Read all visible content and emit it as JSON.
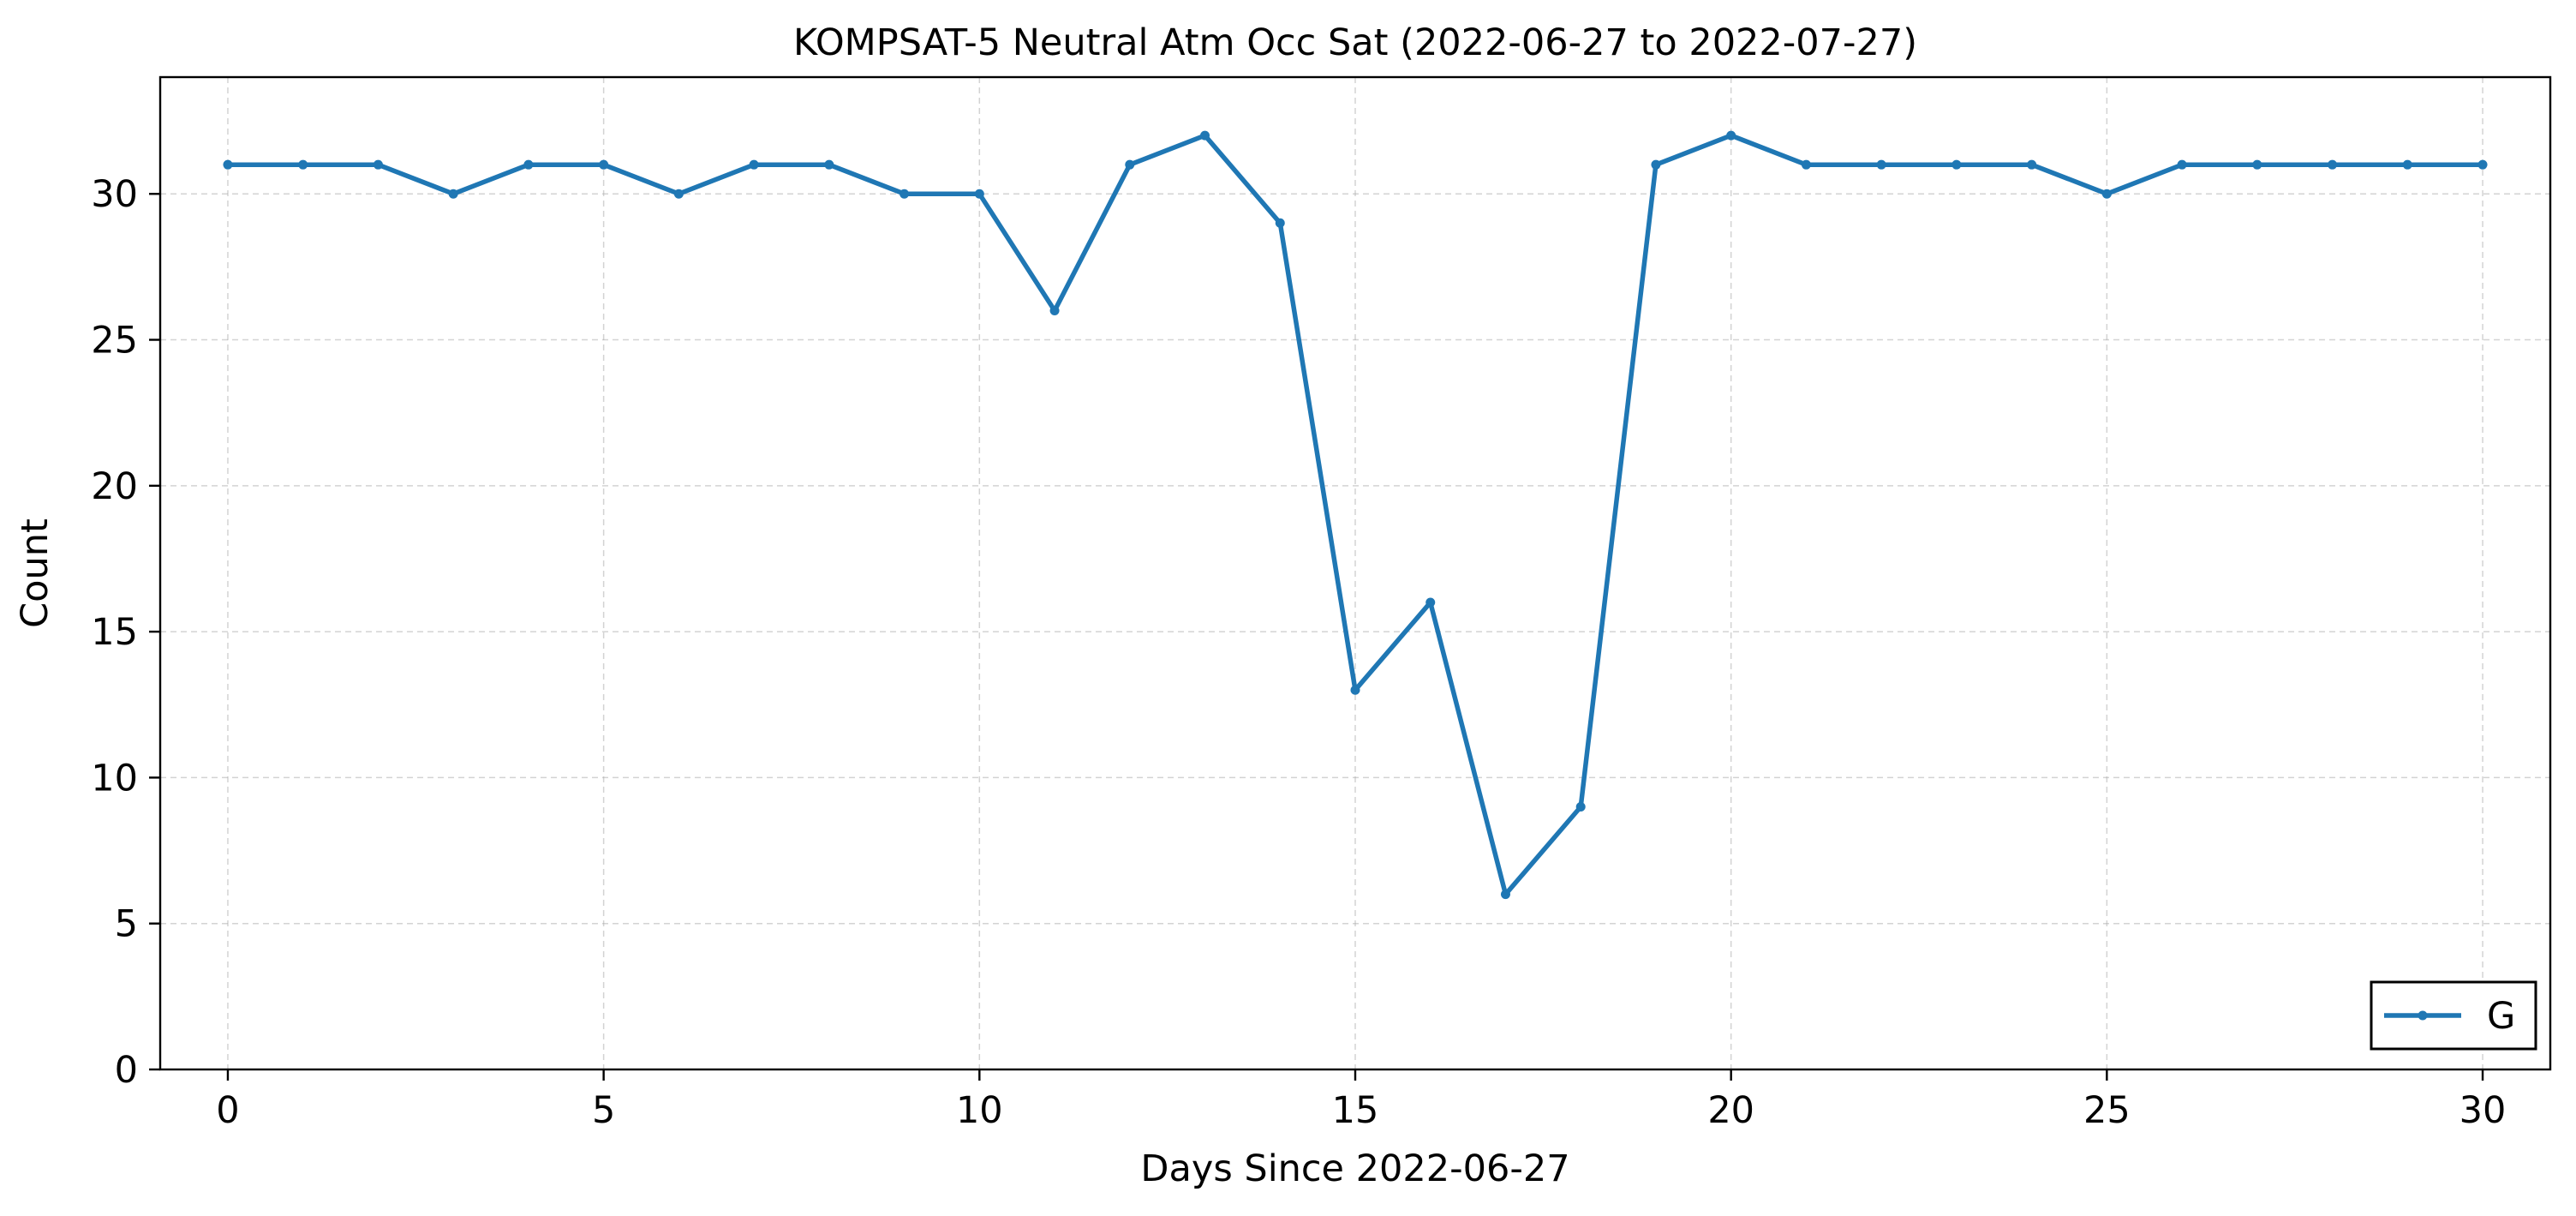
{
  "chart_data": {
    "type": "line",
    "title": "KOMPSAT-5 Neutral Atm Occ Sat (2022-06-27 to 2022-07-27)",
    "xlabel": "Days Since 2022-06-27",
    "ylabel": "Count",
    "xlim": [
      -0.9,
      30.9
    ],
    "ylim": [
      0,
      34
    ],
    "xticks": [
      0,
      5,
      10,
      15,
      20,
      25,
      30
    ],
    "xtick_labels": [
      "0",
      "5",
      "10",
      "15",
      "20",
      "25",
      "30"
    ],
    "yticks": [
      0,
      5,
      10,
      15,
      20,
      25,
      30
    ],
    "ytick_labels": [
      "0",
      "5",
      "10",
      "15",
      "20",
      "25",
      "30"
    ],
    "grid": true,
    "legend_position": "lower-right",
    "series": [
      {
        "name": "G",
        "color": "#1f77b4",
        "marker": "dot",
        "x": [
          0,
          1,
          2,
          3,
          4,
          5,
          6,
          7,
          8,
          9,
          10,
          11,
          12,
          13,
          14,
          15,
          16,
          17,
          18,
          19,
          20,
          21,
          22,
          23,
          24,
          25,
          26,
          27,
          28,
          29,
          30
        ],
        "values": [
          31,
          31,
          31,
          30,
          31,
          31,
          30,
          31,
          31,
          30,
          30,
          26,
          31,
          32,
          29,
          13,
          16,
          6,
          9,
          31,
          32,
          31,
          31,
          31,
          31,
          30,
          31,
          31,
          31,
          31,
          31
        ]
      }
    ]
  }
}
